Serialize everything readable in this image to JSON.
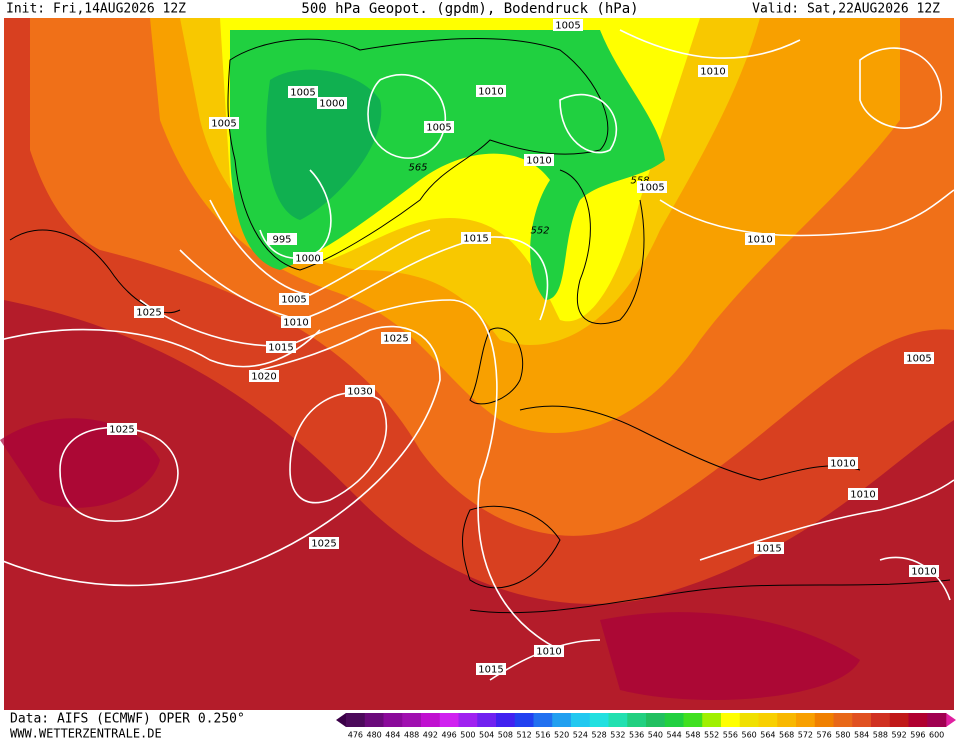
{
  "header": {
    "init": "Init: Fri,14AUG2026 12Z",
    "title": "500 hPa Geopot. (gpdm), Bodendruck (hPa)",
    "valid": "Valid: Sat,22AUG2026 12Z"
  },
  "footer": {
    "data": "Data: AIFS (ECMWF) OPER 0.250°",
    "site": "WWW.WETTERZENTRALE.DE"
  },
  "map_labels": [
    1005,
    1010,
    1005,
    1000,
    1010,
    1005,
    1005,
    565,
    1010,
    558,
    1005,
    995,
    1015,
    552,
    1010,
    1000,
    1005,
    1010,
    1025,
    1015,
    1025,
    1020,
    1030,
    1025,
    1005,
    1010,
    1010,
    1025,
    1015,
    1010,
    1010,
    1015
  ],
  "colorbar": {
    "labels": [
      476,
      480,
      484,
      488,
      492,
      496,
      500,
      504,
      508,
      512,
      516,
      520,
      524,
      528,
      532,
      536,
      540,
      544,
      548,
      552,
      556,
      560,
      564,
      568,
      572,
      576,
      580,
      584,
      588,
      592,
      596,
      600
    ],
    "colors": [
      "#4b0a5a",
      "#6a0a7a",
      "#8a0a9a",
      "#a010b0",
      "#c010d0",
      "#d020f0",
      "#a020f0",
      "#7020f0",
      "#4020f0",
      "#2040f0",
      "#2070f0",
      "#20a0f0",
      "#20c8f0",
      "#20e0e0",
      "#20e0b0",
      "#20d080",
      "#20c060",
      "#20d040",
      "#40e020",
      "#a0f000",
      "#ffff00",
      "#f0e000",
      "#f8d000",
      "#f8b800",
      "#f8a000",
      "#f08000",
      "#e86818",
      "#e05020",
      "#d03020",
      "#c01818",
      "#b00030",
      "#a00050"
    ]
  }
}
